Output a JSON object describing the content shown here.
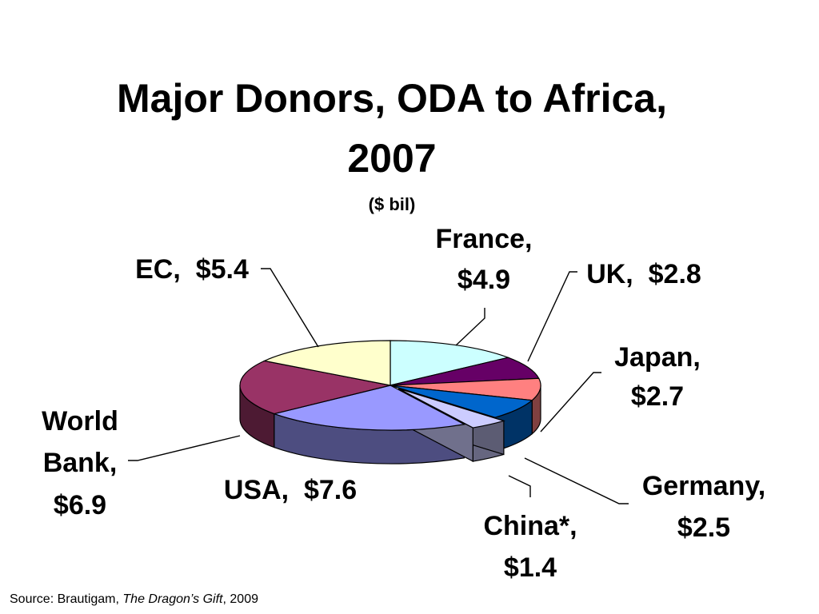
{
  "chart_data": {
    "type": "pie",
    "title": "Major Donors, ODA to Africa, 2007",
    "title_lines": [
      "Major Donors, ODA to Africa,",
      "2007"
    ],
    "subtitle": "($ bil)",
    "unit": "$ bil",
    "three_d": true,
    "exploded": [
      "China*"
    ],
    "slices": [
      {
        "name": "France",
        "value": 4.9,
        "color": "#CCFFFF",
        "label": [
          "France,",
          "$4.9"
        ]
      },
      {
        "name": "UK",
        "value": 2.8,
        "color": "#660066",
        "label": [
          "UK,  $2.8"
        ]
      },
      {
        "name": "Japan",
        "value": 2.7,
        "color": "#FF8080",
        "label": [
          "Japan,",
          "$2.7"
        ]
      },
      {
        "name": "Germany",
        "value": 2.5,
        "color": "#0066CC",
        "label": [
          "Germany,",
          "$2.5"
        ]
      },
      {
        "name": "China*",
        "value": 1.4,
        "color": "#CCCCFF",
        "label": [
          "China*,",
          "$1.4"
        ]
      },
      {
        "name": "USA",
        "value": 7.6,
        "color": "#9999FF",
        "label": [
          "USA,  $7.6"
        ]
      },
      {
        "name": "World Bank",
        "value": 6.9,
        "color": "#993366",
        "label": [
          "World",
          "Bank,",
          "$6.9"
        ]
      },
      {
        "name": "EC",
        "value": 5.4,
        "color": "#FFFFCC",
        "label": [
          "EC,  $5.4"
        ]
      }
    ]
  },
  "source": {
    "prefix": "Source:  Brautigam, ",
    "book": "The Dragon’s Gift",
    "suffix": ", 2009"
  }
}
